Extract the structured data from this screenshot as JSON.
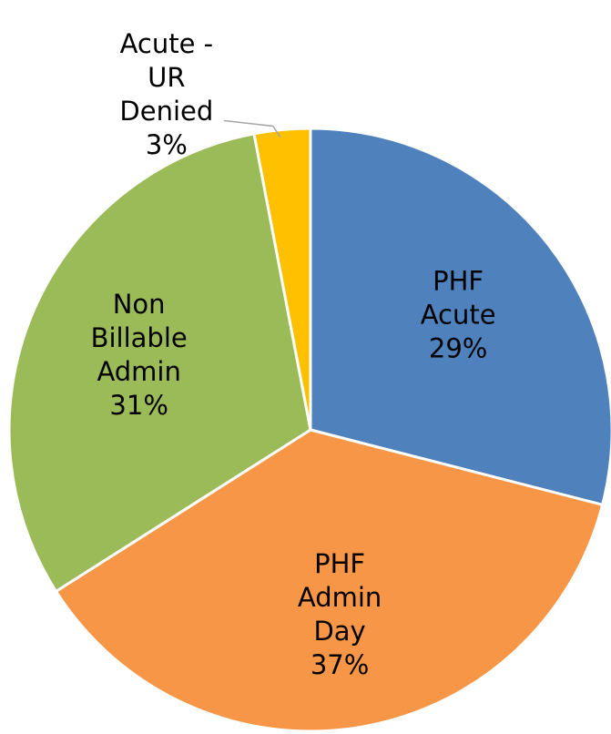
{
  "chart_data": {
    "type": "pie",
    "categories": [
      "PHF Acute",
      "PHF Admin Day",
      "Non Billable Admin",
      "Acute - UR Denied"
    ],
    "values": [
      29,
      37,
      31,
      3
    ],
    "value_labels": [
      "29%",
      "37%",
      "31%",
      "3%"
    ],
    "colors": [
      "#4f81bd",
      "#f79646",
      "#9bbb59",
      "#ffc000"
    ]
  }
}
